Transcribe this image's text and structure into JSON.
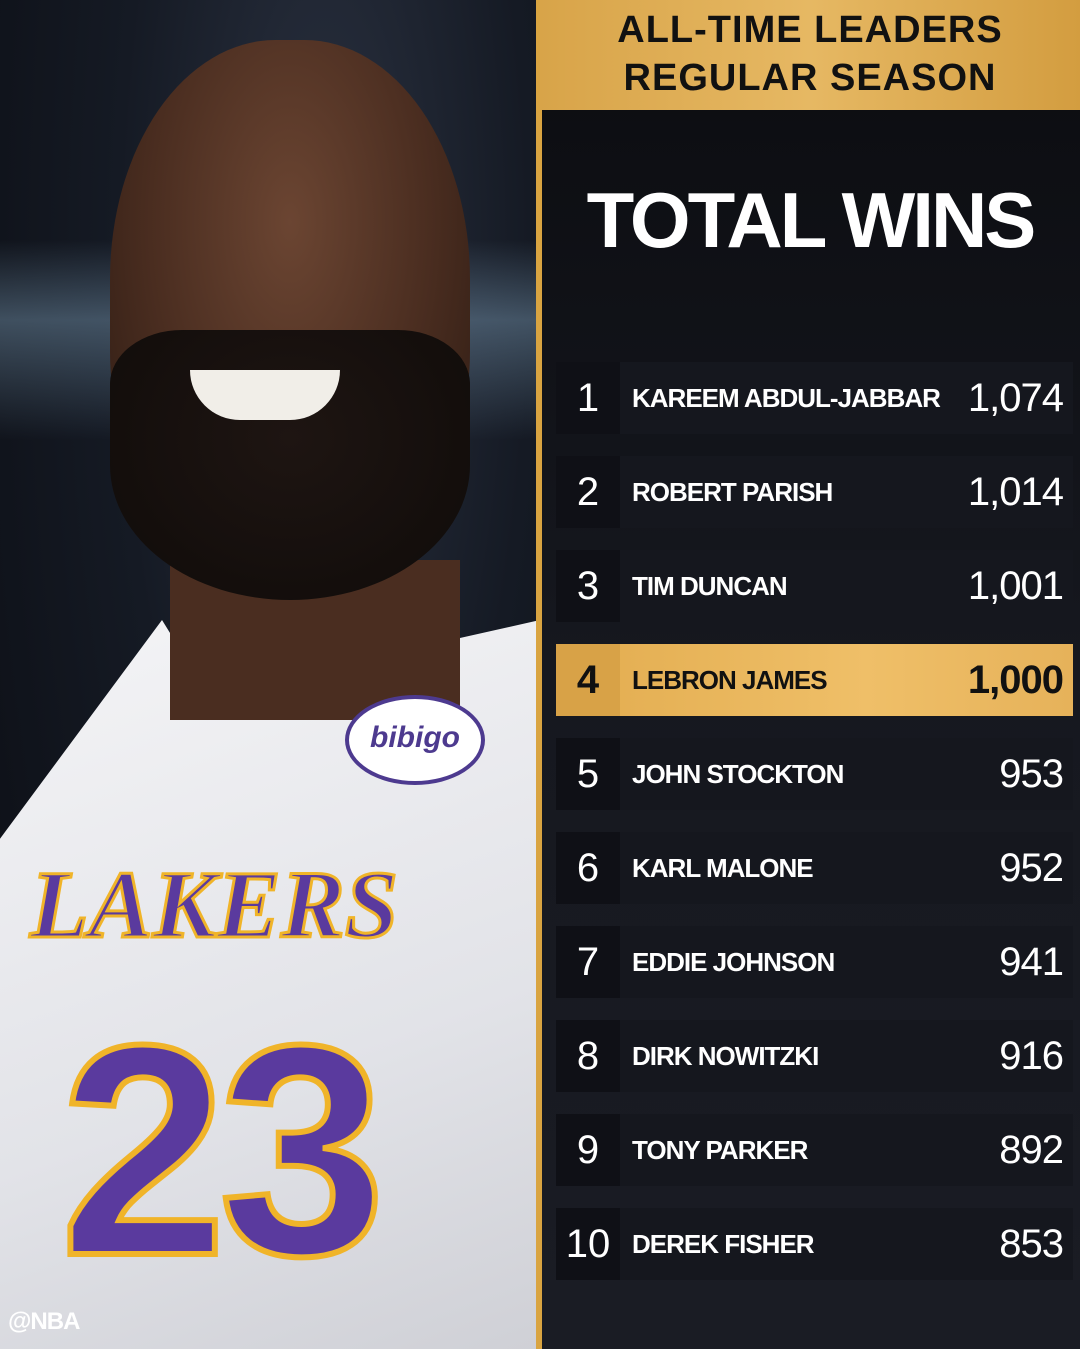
{
  "header": {
    "line1": "ALL-TIME LEADERS",
    "line2": "REGULAR SEASON"
  },
  "title": "TOTAL WINS",
  "accent_color": "#e6b25a",
  "photo": {
    "sponsor": "bibigo",
    "team": "LAKERS",
    "jersey_number": "23"
  },
  "watermark": "@NBA",
  "leaders": [
    {
      "rank": "1",
      "name": "KAREEM ABDUL-JABBAR",
      "wins": "1,074"
    },
    {
      "rank": "2",
      "name": "ROBERT PARISH",
      "wins": "1,014"
    },
    {
      "rank": "3",
      "name": "TIM DUNCAN",
      "wins": "1,001"
    },
    {
      "rank": "4",
      "name": "LEBRON JAMES",
      "wins": "1,000",
      "highlighted": true
    },
    {
      "rank": "5",
      "name": "JOHN STOCKTON",
      "wins": "953"
    },
    {
      "rank": "6",
      "name": "KARL MALONE",
      "wins": "952"
    },
    {
      "rank": "7",
      "name": "EDDIE JOHNSON",
      "wins": "941"
    },
    {
      "rank": "8",
      "name": "DIRK NOWITZKI",
      "wins": "916"
    },
    {
      "rank": "9",
      "name": "TONY PARKER",
      "wins": "892"
    },
    {
      "rank": "10",
      "name": "DEREK FISHER",
      "wins": "853"
    }
  ]
}
